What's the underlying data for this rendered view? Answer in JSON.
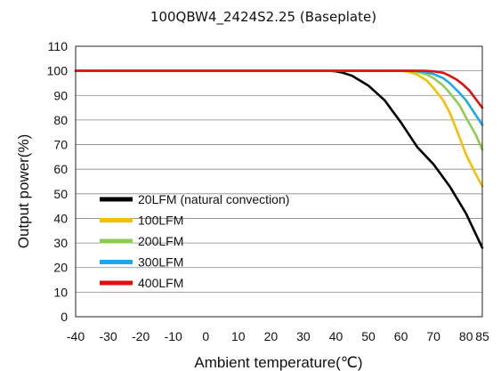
{
  "chart_data": {
    "type": "line",
    "title": "100QBW4_2424S2.25 (Baseplate)",
    "xlabel": "Ambient temperature(℃)",
    "ylabel": "Output power(%)",
    "xlim": [
      -40,
      85
    ],
    "ylim": [
      0,
      110
    ],
    "xticks": [
      -40,
      -30,
      -20,
      -10,
      0,
      10,
      20,
      30,
      40,
      50,
      60,
      70,
      80,
      85
    ],
    "yticks": [
      0,
      10,
      20,
      30,
      40,
      50,
      60,
      70,
      80,
      90,
      100,
      110
    ],
    "grid": "horizontal",
    "legend_position": "lower-left",
    "series": [
      {
        "name": "20LFM (natural convection)",
        "color": "#000000",
        "x": [
          -40,
          30,
          38,
          40,
          42,
          45,
          50,
          55,
          60,
          65,
          70,
          75,
          80,
          85
        ],
        "y": [
          100,
          100,
          100,
          99.8,
          99.3,
          98,
          94,
          88,
          79,
          69,
          62,
          53,
          42,
          28
        ]
      },
      {
        "name": "100LFM",
        "color": "#f5c000",
        "x": [
          -40,
          60,
          62,
          65,
          68,
          70,
          73,
          75,
          78,
          80,
          83,
          85
        ],
        "y": [
          100,
          100,
          99.7,
          98.5,
          96,
          93,
          88,
          83,
          73,
          66,
          58,
          53
        ]
      },
      {
        "name": "200LFM",
        "color": "#8ccc50",
        "x": [
          -40,
          62,
          65,
          68,
          70,
          73,
          75,
          78,
          80,
          83,
          85
        ],
        "y": [
          100,
          100,
          99.6,
          98.5,
          97,
          94,
          91,
          86,
          81,
          74,
          68
        ]
      },
      {
        "name": "300LFM",
        "color": "#1ea8e8",
        "x": [
          -40,
          64,
          67,
          70,
          73,
          75,
          78,
          80,
          83,
          85
        ],
        "y": [
          100,
          100,
          99.6,
          98.7,
          97,
          95,
          91,
          88,
          82,
          78
        ]
      },
      {
        "name": "400LFM",
        "color": "#e01010",
        "x": [
          -40,
          67,
          70,
          73,
          75,
          77,
          79,
          81,
          83,
          85
        ],
        "y": [
          100,
          100,
          99.8,
          99.2,
          98,
          96.5,
          94.5,
          92,
          88.5,
          85
        ]
      }
    ]
  }
}
